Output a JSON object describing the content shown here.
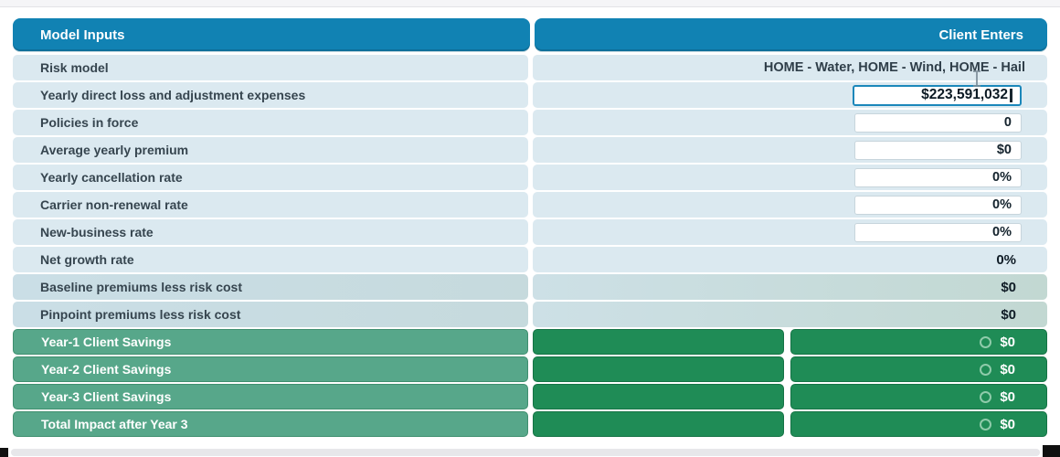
{
  "header": {
    "model_inputs": "Model Inputs",
    "client_enters": "Client Enters"
  },
  "rows": [
    {
      "label": "Risk model",
      "value": "HOME - Water, HOME - Wind, HOME - Hail",
      "type": "text"
    },
    {
      "label": "Yearly direct loss and adjustment expenses",
      "value": "$223,591,032",
      "type": "input-active"
    },
    {
      "label": "Policies in force",
      "value": "0",
      "type": "input"
    },
    {
      "label": "Average yearly premium",
      "value": "$0",
      "type": "input"
    },
    {
      "label": "Yearly cancellation rate",
      "value": "0%",
      "type": "input"
    },
    {
      "label": "Carrier non-renewal rate",
      "value": "0%",
      "type": "input"
    },
    {
      "label": "New-business rate",
      "value": "0%",
      "type": "input"
    },
    {
      "label": "Net growth rate",
      "value": "0%",
      "type": "text"
    },
    {
      "label": "Baseline premiums less risk cost",
      "value": "$0",
      "type": "text",
      "subtotal": true
    },
    {
      "label": "Pinpoint premiums less risk cost",
      "value": "$0",
      "type": "text",
      "subtotal": true
    },
    {
      "label": "Year-1 Client Savings",
      "value": "$0",
      "type": "savings"
    },
    {
      "label": "Year-2 Client Savings",
      "value": "$0",
      "type": "savings"
    },
    {
      "label": "Year-3 Client Savings",
      "value": "$0",
      "type": "savings"
    },
    {
      "label": "Total Impact after Year 3",
      "value": "$0",
      "type": "savings"
    }
  ],
  "icons": {
    "savings_value_icon": "ring-icon",
    "mouse_cursor": "i-beam-cursor"
  },
  "colors": {
    "header_bg": "#1182b3",
    "row_bg": "#dbe9f0",
    "subtotal_row_bg": "#cadee6",
    "savings_label_bg": "#57a78a",
    "savings_value_bg": "#1f8c56",
    "active_border": "#1b87ba",
    "label_text": "#36454f",
    "value_text": "#0f1c26"
  }
}
